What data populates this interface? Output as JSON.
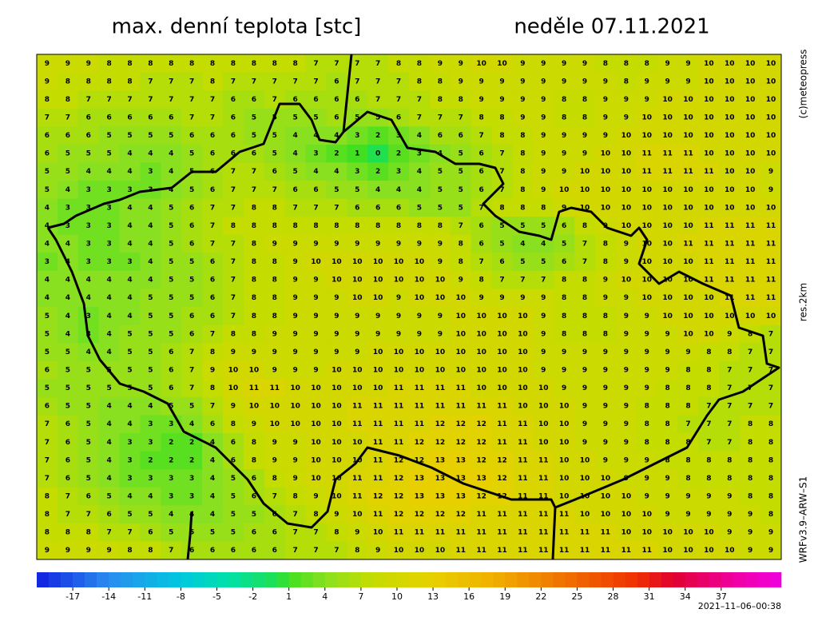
{
  "chart_data": {
    "type": "heatmap-grid",
    "title": "max. denní teplota [stc]",
    "date": "neděle 07.11.2021",
    "copyright": "(c)meteopress",
    "resolution": "res.2km",
    "model": "WRFv3.9–ARW–S1",
    "timestamp": "2021–11–06–00:38",
    "grid": [
      [
        9,
        9,
        9,
        8,
        8,
        8,
        8,
        8,
        8,
        8,
        8,
        8,
        8,
        7,
        7,
        7,
        7,
        8,
        8,
        9,
        9,
        10,
        10,
        9,
        9,
        9,
        9,
        8,
        8,
        8,
        9,
        9,
        10,
        10,
        10,
        10
      ],
      [
        9,
        8,
        8,
        8,
        8,
        7,
        7,
        7,
        8,
        7,
        7,
        7,
        7,
        7,
        6,
        7,
        7,
        7,
        8,
        8,
        9,
        9,
        9,
        9,
        9,
        9,
        9,
        9,
        8,
        9,
        9,
        9,
        10,
        10,
        10,
        10
      ],
      [
        8,
        8,
        7,
        7,
        7,
        7,
        7,
        7,
        7,
        6,
        6,
        7,
        6,
        6,
        6,
        6,
        7,
        7,
        7,
        8,
        8,
        9,
        9,
        9,
        9,
        8,
        8,
        9,
        9,
        9,
        10,
        10,
        10,
        10,
        10,
        10
      ],
      [
        7,
        7,
        6,
        6,
        6,
        6,
        6,
        7,
        7,
        6,
        5,
        5,
        5,
        5,
        6,
        5,
        5,
        6,
        7,
        7,
        7,
        8,
        8,
        9,
        9,
        8,
        8,
        9,
        9,
        10,
        10,
        10,
        10,
        10,
        10,
        10
      ],
      [
        6,
        6,
        6,
        5,
        5,
        5,
        5,
        6,
        6,
        6,
        5,
        5,
        4,
        4,
        4,
        3,
        2,
        3,
        4,
        6,
        6,
        7,
        8,
        8,
        9,
        9,
        9,
        9,
        10,
        10,
        10,
        10,
        10,
        10,
        10,
        10
      ],
      [
        6,
        5,
        5,
        5,
        4,
        4,
        4,
        5,
        6,
        6,
        6,
        5,
        4,
        3,
        2,
        1,
        0,
        2,
        3,
        4,
        5,
        6,
        7,
        8,
        9,
        9,
        9,
        10,
        10,
        11,
        11,
        11,
        10,
        10,
        10,
        10
      ],
      [
        5,
        5,
        4,
        4,
        4,
        3,
        4,
        5,
        6,
        7,
        7,
        6,
        5,
        4,
        4,
        3,
        2,
        3,
        4,
        5,
        5,
        6,
        7,
        8,
        9,
        9,
        10,
        10,
        10,
        11,
        11,
        11,
        11,
        10,
        10,
        9
      ],
      [
        5,
        4,
        3,
        3,
        3,
        3,
        4,
        5,
        6,
        7,
        7,
        7,
        6,
        6,
        5,
        5,
        4,
        4,
        4,
        5,
        5,
        6,
        7,
        8,
        9,
        10,
        10,
        10,
        10,
        10,
        10,
        10,
        10,
        10,
        10,
        9
      ],
      [
        4,
        3,
        3,
        3,
        4,
        4,
        5,
        6,
        7,
        7,
        8,
        8,
        7,
        7,
        7,
        6,
        6,
        6,
        5,
        5,
        5,
        7,
        8,
        8,
        8,
        9,
        10,
        10,
        10,
        10,
        10,
        10,
        10,
        10,
        10,
        10
      ],
      [
        4,
        3,
        3,
        3,
        4,
        4,
        5,
        6,
        7,
        8,
        8,
        8,
        8,
        8,
        8,
        8,
        8,
        8,
        8,
        8,
        7,
        6,
        5,
        5,
        5,
        6,
        8,
        9,
        10,
        10,
        10,
        10,
        11,
        11,
        11,
        11
      ],
      [
        4,
        4,
        3,
        3,
        4,
        4,
        5,
        6,
        7,
        7,
        8,
        9,
        9,
        9,
        9,
        9,
        9,
        9,
        9,
        9,
        8,
        6,
        5,
        4,
        4,
        5,
        7,
        8,
        9,
        10,
        10,
        11,
        11,
        11,
        11,
        11
      ],
      [
        3,
        4,
        3,
        3,
        3,
        4,
        5,
        5,
        6,
        7,
        8,
        8,
        9,
        10,
        10,
        10,
        10,
        10,
        10,
        9,
        8,
        7,
        6,
        5,
        5,
        6,
        7,
        8,
        9,
        10,
        10,
        10,
        11,
        11,
        11,
        11
      ],
      [
        4,
        4,
        4,
        4,
        4,
        4,
        5,
        5,
        6,
        7,
        8,
        8,
        9,
        9,
        10,
        10,
        10,
        10,
        10,
        10,
        9,
        8,
        7,
        7,
        7,
        8,
        8,
        9,
        10,
        10,
        10,
        10,
        11,
        11,
        11,
        11
      ],
      [
        4,
        4,
        4,
        4,
        4,
        5,
        5,
        5,
        6,
        7,
        8,
        8,
        9,
        9,
        9,
        10,
        10,
        9,
        10,
        10,
        10,
        9,
        9,
        9,
        9,
        8,
        8,
        9,
        9,
        10,
        10,
        10,
        10,
        11,
        11,
        11
      ],
      [
        5,
        4,
        3,
        4,
        4,
        5,
        5,
        6,
        6,
        7,
        8,
        8,
        9,
        9,
        9,
        9,
        9,
        9,
        9,
        9,
        10,
        10,
        10,
        10,
        9,
        8,
        8,
        8,
        9,
        9,
        10,
        10,
        10,
        10,
        10,
        10
      ],
      [
        5,
        4,
        3,
        4,
        5,
        5,
        5,
        6,
        7,
        8,
        8,
        9,
        9,
        9,
        9,
        9,
        9,
        9,
        9,
        9,
        10,
        10,
        10,
        10,
        9,
        8,
        8,
        8,
        9,
        9,
        9,
        10,
        10,
        9,
        8,
        7
      ],
      [
        5,
        5,
        4,
        4,
        5,
        5,
        6,
        7,
        8,
        9,
        9,
        9,
        9,
        9,
        9,
        9,
        10,
        10,
        10,
        10,
        10,
        10,
        10,
        10,
        9,
        9,
        9,
        9,
        9,
        9,
        9,
        9,
        8,
        8,
        7,
        7
      ],
      [
        6,
        5,
        5,
        5,
        5,
        5,
        6,
        7,
        9,
        10,
        10,
        9,
        9,
        9,
        10,
        10,
        10,
        10,
        10,
        10,
        10,
        10,
        10,
        10,
        9,
        9,
        9,
        9,
        9,
        9,
        9,
        8,
        8,
        7,
        7,
        7
      ],
      [
        5,
        5,
        5,
        5,
        5,
        5,
        6,
        7,
        8,
        10,
        11,
        11,
        10,
        10,
        10,
        10,
        10,
        11,
        11,
        11,
        11,
        10,
        10,
        10,
        10,
        9,
        9,
        9,
        9,
        9,
        8,
        8,
        8,
        7,
        7,
        7
      ],
      [
        6,
        5,
        5,
        4,
        4,
        4,
        5,
        5,
        7,
        9,
        10,
        10,
        10,
        10,
        10,
        11,
        11,
        11,
        11,
        11,
        11,
        11,
        11,
        10,
        10,
        10,
        9,
        9,
        9,
        8,
        8,
        8,
        7,
        7,
        7,
        7
      ],
      [
        7,
        6,
        5,
        4,
        4,
        3,
        3,
        4,
        6,
        8,
        9,
        10,
        10,
        10,
        10,
        11,
        11,
        11,
        11,
        12,
        12,
        12,
        11,
        11,
        10,
        10,
        9,
        9,
        9,
        8,
        8,
        7,
        7,
        7,
        8,
        8
      ],
      [
        7,
        6,
        5,
        4,
        3,
        3,
        2,
        2,
        4,
        6,
        8,
        9,
        9,
        10,
        10,
        10,
        11,
        11,
        12,
        12,
        12,
        12,
        11,
        11,
        10,
        10,
        9,
        9,
        9,
        8,
        8,
        8,
        7,
        7,
        8,
        8
      ],
      [
        7,
        6,
        5,
        4,
        3,
        2,
        2,
        2,
        4,
        6,
        8,
        9,
        9,
        10,
        10,
        10,
        11,
        12,
        12,
        13,
        13,
        12,
        12,
        11,
        11,
        10,
        10,
        9,
        9,
        9,
        8,
        8,
        8,
        8,
        8,
        8
      ],
      [
        7,
        6,
        5,
        4,
        3,
        3,
        3,
        3,
        4,
        5,
        6,
        8,
        9,
        10,
        10,
        11,
        11,
        12,
        13,
        13,
        13,
        13,
        12,
        11,
        11,
        10,
        10,
        10,
        9,
        9,
        9,
        8,
        8,
        8,
        8,
        8
      ],
      [
        8,
        7,
        6,
        5,
        4,
        4,
        3,
        3,
        4,
        5,
        6,
        7,
        8,
        9,
        10,
        11,
        12,
        12,
        13,
        13,
        13,
        12,
        12,
        11,
        11,
        10,
        10,
        10,
        10,
        9,
        9,
        9,
        9,
        9,
        8,
        8
      ],
      [
        8,
        7,
        7,
        6,
        5,
        5,
        4,
        4,
        4,
        5,
        5,
        6,
        7,
        8,
        9,
        10,
        11,
        12,
        12,
        12,
        12,
        11,
        11,
        11,
        11,
        11,
        10,
        10,
        10,
        10,
        9,
        9,
        9,
        9,
        9,
        8
      ],
      [
        8,
        8,
        8,
        7,
        7,
        6,
        5,
        5,
        5,
        5,
        6,
        6,
        7,
        7,
        8,
        9,
        10,
        11,
        11,
        11,
        11,
        11,
        11,
        11,
        11,
        11,
        11,
        11,
        10,
        10,
        10,
        10,
        10,
        9,
        9,
        9
      ],
      [
        9,
        9,
        9,
        9,
        8,
        8,
        7,
        6,
        6,
        6,
        6,
        6,
        7,
        7,
        7,
        8,
        9,
        10,
        10,
        10,
        11,
        11,
        11,
        11,
        11,
        11,
        11,
        11,
        11,
        11,
        10,
        10,
        10,
        10,
        9,
        9
      ]
    ],
    "colorbar": {
      "range": [
        -20,
        42
      ],
      "ticks": [
        -17,
        -14,
        -11,
        -8,
        -5,
        -2,
        1,
        4,
        7,
        10,
        13,
        16,
        19,
        22,
        25,
        28,
        31,
        34,
        37
      ],
      "color_stops": [
        [
          -20,
          "#1020e0"
        ],
        [
          -14,
          "#2a8cf0"
        ],
        [
          -8,
          "#00c8e0"
        ],
        [
          -4,
          "#00e0a8"
        ],
        [
          0,
          "#20e050"
        ],
        [
          1,
          "#40e020"
        ],
        [
          4,
          "#88e020"
        ],
        [
          8,
          "#c4dc00"
        ],
        [
          13,
          "#e8d000"
        ],
        [
          18,
          "#f0b000"
        ],
        [
          24,
          "#f07000"
        ],
        [
          30,
          "#f03000"
        ],
        [
          33,
          "#e00030"
        ],
        [
          38,
          "#f000a0"
        ],
        [
          42,
          "#f000e0"
        ]
      ]
    }
  }
}
